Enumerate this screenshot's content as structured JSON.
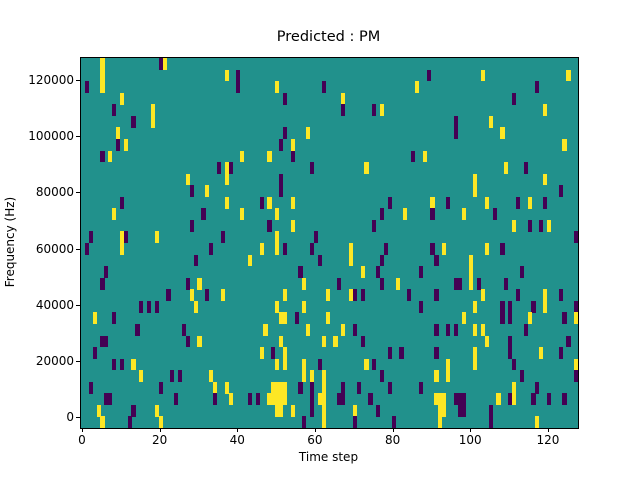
{
  "chart_data": {
    "type": "heatmap",
    "title": "Predicted : PM",
    "xlabel": "Time step",
    "ylabel": "Frequency (Hz)",
    "grid": {
      "cols": 128,
      "rows": 32
    },
    "x_ticks": [
      0,
      20,
      40,
      60,
      80,
      100,
      120
    ],
    "y_ticks": [
      0,
      20000,
      40000,
      60000,
      80000,
      100000,
      120000
    ],
    "x_range": [
      0,
      128
    ],
    "y_range": [
      0,
      128000
    ],
    "legend": "none",
    "colormap": {
      "background": "#21918c",
      "low": "#440154",
      "high": "#fde725"
    },
    "cells_format": "[col, row_from_top, color] with color y=high-yellow, p=low-purple; grid 128 cols x 32 rows",
    "cells": [
      [
        5,
        0,
        "y"
      ],
      [
        20,
        0,
        "p"
      ],
      [
        21,
        0,
        "y"
      ],
      [
        5,
        1,
        "y"
      ],
      [
        37,
        1,
        "y"
      ],
      [
        40,
        1,
        "p"
      ],
      [
        89,
        1,
        "p"
      ],
      [
        103,
        1,
        "y"
      ],
      [
        125,
        1,
        "y"
      ],
      [
        1,
        2,
        "p"
      ],
      [
        5,
        2,
        "y"
      ],
      [
        40,
        2,
        "p"
      ],
      [
        50,
        2,
        "y"
      ],
      [
        62,
        2,
        "p"
      ],
      [
        86,
        2,
        "y"
      ],
      [
        117,
        2,
        "p"
      ],
      [
        10,
        3,
        "y"
      ],
      [
        52,
        3,
        "p"
      ],
      [
        67,
        3,
        "y"
      ],
      [
        111,
        3,
        "p"
      ],
      [
        8,
        4,
        "p"
      ],
      [
        18,
        4,
        "y"
      ],
      [
        67,
        4,
        "p"
      ],
      [
        75,
        4,
        "p"
      ],
      [
        77,
        4,
        "y"
      ],
      [
        119,
        4,
        "y"
      ],
      [
        13,
        5,
        "p"
      ],
      [
        18,
        5,
        "y"
      ],
      [
        96,
        5,
        "p"
      ],
      [
        105,
        5,
        "y"
      ],
      [
        9,
        6,
        "y"
      ],
      [
        52,
        6,
        "p"
      ],
      [
        58,
        6,
        "y"
      ],
      [
        96,
        6,
        "p"
      ],
      [
        108,
        6,
        "y"
      ],
      [
        9,
        7,
        "p"
      ],
      [
        11,
        7,
        "y"
      ],
      [
        51,
        7,
        "p"
      ],
      [
        54,
        7,
        "y"
      ],
      [
        124,
        7,
        "y"
      ],
      [
        5,
        8,
        "p"
      ],
      [
        7,
        8,
        "y"
      ],
      [
        41,
        8,
        "y"
      ],
      [
        48,
        8,
        "y"
      ],
      [
        54,
        8,
        "p"
      ],
      [
        85,
        8,
        "p"
      ],
      [
        88,
        8,
        "y"
      ],
      [
        35,
        9,
        "p"
      ],
      [
        37,
        9,
        "y"
      ],
      [
        38,
        9,
        "p"
      ],
      [
        59,
        9,
        "p"
      ],
      [
        73,
        9,
        "y"
      ],
      [
        109,
        9,
        "y"
      ],
      [
        114,
        9,
        "p"
      ],
      [
        27,
        10,
        "y"
      ],
      [
        37,
        10,
        "y"
      ],
      [
        51,
        10,
        "p"
      ],
      [
        101,
        10,
        "y"
      ],
      [
        119,
        10,
        "y"
      ],
      [
        28,
        11,
        "p"
      ],
      [
        32,
        11,
        "y"
      ],
      [
        51,
        11,
        "p"
      ],
      [
        101,
        11,
        "y"
      ],
      [
        123,
        11,
        "p"
      ],
      [
        10,
        12,
        "p"
      ],
      [
        37,
        12,
        "y"
      ],
      [
        46,
        12,
        "p"
      ],
      [
        48,
        12,
        "y"
      ],
      [
        54,
        12,
        "y"
      ],
      [
        79,
        12,
        "p"
      ],
      [
        90,
        12,
        "y"
      ],
      [
        94,
        12,
        "p"
      ],
      [
        104,
        12,
        "y"
      ],
      [
        112,
        12,
        "p"
      ],
      [
        115,
        12,
        "y"
      ],
      [
        119,
        12,
        "p"
      ],
      [
        8,
        13,
        "y"
      ],
      [
        31,
        13,
        "p"
      ],
      [
        41,
        13,
        "y"
      ],
      [
        50,
        13,
        "y"
      ],
      [
        77,
        13,
        "p"
      ],
      [
        83,
        13,
        "y"
      ],
      [
        90,
        13,
        "p"
      ],
      [
        98,
        13,
        "y"
      ],
      [
        106,
        13,
        "p"
      ],
      [
        28,
        14,
        "p"
      ],
      [
        48,
        14,
        "p"
      ],
      [
        54,
        14,
        "y"
      ],
      [
        75,
        14,
        "p"
      ],
      [
        111,
        14,
        "y"
      ],
      [
        115,
        14,
        "p"
      ],
      [
        118,
        14,
        "p"
      ],
      [
        120,
        14,
        "y"
      ],
      [
        2,
        15,
        "p"
      ],
      [
        10,
        15,
        "y"
      ],
      [
        11,
        15,
        "p"
      ],
      [
        19,
        15,
        "y"
      ],
      [
        36,
        15,
        "p"
      ],
      [
        50,
        15,
        "y"
      ],
      [
        60,
        15,
        "p"
      ],
      [
        127,
        15,
        "p"
      ],
      [
        1,
        16,
        "p"
      ],
      [
        10,
        16,
        "y"
      ],
      [
        33,
        16,
        "p"
      ],
      [
        46,
        16,
        "y"
      ],
      [
        50,
        16,
        "y"
      ],
      [
        52,
        16,
        "p"
      ],
      [
        59,
        16,
        "p"
      ],
      [
        69,
        16,
        "y"
      ],
      [
        78,
        16,
        "p"
      ],
      [
        90,
        16,
        "p"
      ],
      [
        93,
        16,
        "y"
      ],
      [
        104,
        16,
        "y"
      ],
      [
        108,
        16,
        "p"
      ],
      [
        29,
        17,
        "p"
      ],
      [
        43,
        17,
        "y"
      ],
      [
        61,
        17,
        "p"
      ],
      [
        69,
        17,
        "y"
      ],
      [
        77,
        17,
        "p"
      ],
      [
        91,
        17,
        "p"
      ],
      [
        100,
        17,
        "y"
      ],
      [
        6,
        18,
        "p"
      ],
      [
        56,
        18,
        "p"
      ],
      [
        72,
        18,
        "y"
      ],
      [
        76,
        18,
        "p"
      ],
      [
        87,
        18,
        "p"
      ],
      [
        100,
        18,
        "y"
      ],
      [
        113,
        18,
        "p"
      ],
      [
        5,
        19,
        "p"
      ],
      [
        27,
        19,
        "p"
      ],
      [
        30,
        19,
        "y"
      ],
      [
        57,
        19,
        "y"
      ],
      [
        66,
        19,
        "p"
      ],
      [
        77,
        19,
        "p"
      ],
      [
        81,
        19,
        "y"
      ],
      [
        96,
        19,
        "p"
      ],
      [
        97,
        19,
        "p"
      ],
      [
        100,
        19,
        "y"
      ],
      [
        102,
        19,
        "p"
      ],
      [
        109,
        19,
        "p"
      ],
      [
        22,
        20,
        "p"
      ],
      [
        28,
        20,
        "y"
      ],
      [
        32,
        20,
        "p"
      ],
      [
        36,
        20,
        "y"
      ],
      [
        52,
        20,
        "y"
      ],
      [
        63,
        20,
        "y"
      ],
      [
        69,
        20,
        "y"
      ],
      [
        70,
        20,
        "p"
      ],
      [
        72,
        20,
        "p"
      ],
      [
        84,
        20,
        "p"
      ],
      [
        91,
        20,
        "p"
      ],
      [
        103,
        20,
        "y"
      ],
      [
        112,
        20,
        "p"
      ],
      [
        119,
        20,
        "y"
      ],
      [
        123,
        20,
        "p"
      ],
      [
        15,
        21,
        "p"
      ],
      [
        17,
        21,
        "p"
      ],
      [
        19,
        21,
        "p"
      ],
      [
        29,
        21,
        "y"
      ],
      [
        50,
        21,
        "y"
      ],
      [
        57,
        21,
        "y"
      ],
      [
        87,
        21,
        "p"
      ],
      [
        101,
        21,
        "y"
      ],
      [
        108,
        21,
        "p"
      ],
      [
        110,
        21,
        "p"
      ],
      [
        116,
        21,
        "p"
      ],
      [
        119,
        21,
        "y"
      ],
      [
        127,
        21,
        "p"
      ],
      [
        3,
        22,
        "y"
      ],
      [
        8,
        22,
        "p"
      ],
      [
        51,
        22,
        "y"
      ],
      [
        52,
        22,
        "y"
      ],
      [
        55,
        22,
        "p"
      ],
      [
        63,
        22,
        "y"
      ],
      [
        98,
        22,
        "y"
      ],
      [
        108,
        22,
        "p"
      ],
      [
        110,
        22,
        "p"
      ],
      [
        115,
        22,
        "y"
      ],
      [
        124,
        22,
        "p"
      ],
      [
        127,
        22,
        "y"
      ],
      [
        14,
        23,
        "p"
      ],
      [
        26,
        23,
        "p"
      ],
      [
        47,
        23,
        "y"
      ],
      [
        58,
        23,
        "y"
      ],
      [
        67,
        23,
        "y"
      ],
      [
        70,
        23,
        "p"
      ],
      [
        91,
        23,
        "p"
      ],
      [
        94,
        23,
        "p"
      ],
      [
        96,
        23,
        "p"
      ],
      [
        101,
        23,
        "y"
      ],
      [
        103,
        23,
        "y"
      ],
      [
        114,
        23,
        "p"
      ],
      [
        5,
        24,
        "p"
      ],
      [
        6,
        24,
        "p"
      ],
      [
        27,
        24,
        "p"
      ],
      [
        30,
        24,
        "y"
      ],
      [
        51,
        24,
        "y"
      ],
      [
        62,
        24,
        "y"
      ],
      [
        65,
        24,
        "y"
      ],
      [
        72,
        24,
        "p"
      ],
      [
        104,
        24,
        "y"
      ],
      [
        110,
        24,
        "p"
      ],
      [
        125,
        24,
        "p"
      ],
      [
        3,
        25,
        "p"
      ],
      [
        46,
        25,
        "y"
      ],
      [
        49,
        25,
        "p"
      ],
      [
        52,
        25,
        "y"
      ],
      [
        79,
        25,
        "p"
      ],
      [
        82,
        25,
        "p"
      ],
      [
        91,
        25,
        "p"
      ],
      [
        101,
        25,
        "y"
      ],
      [
        110,
        25,
        "p"
      ],
      [
        118,
        25,
        "y"
      ],
      [
        123,
        25,
        "p"
      ],
      [
        8,
        26,
        "p"
      ],
      [
        10,
        26,
        "p"
      ],
      [
        13,
        26,
        "y"
      ],
      [
        50,
        26,
        "y"
      ],
      [
        52,
        26,
        "y"
      ],
      [
        57,
        26,
        "y"
      ],
      [
        61,
        26,
        "p"
      ],
      [
        73,
        26,
        "y"
      ],
      [
        75,
        26,
        "p"
      ],
      [
        94,
        26,
        "y"
      ],
      [
        101,
        26,
        "y"
      ],
      [
        111,
        26,
        "p"
      ],
      [
        127,
        26,
        "y"
      ],
      [
        15,
        27,
        "y"
      ],
      [
        23,
        27,
        "p"
      ],
      [
        25,
        27,
        "p"
      ],
      [
        33,
        27,
        "y"
      ],
      [
        57,
        27,
        "y"
      ],
      [
        59,
        27,
        "y"
      ],
      [
        62,
        27,
        "y"
      ],
      [
        77,
        27,
        "p"
      ],
      [
        91,
        27,
        "y"
      ],
      [
        94,
        27,
        "y"
      ],
      [
        113,
        27,
        "p"
      ],
      [
        127,
        27,
        "p"
      ],
      [
        2,
        28,
        "p"
      ],
      [
        20,
        28,
        "p"
      ],
      [
        34,
        28,
        "y"
      ],
      [
        37,
        28,
        "y"
      ],
      [
        49,
        28,
        "y"
      ],
      [
        50,
        28,
        "y"
      ],
      [
        51,
        28,
        "y"
      ],
      [
        52,
        28,
        "y"
      ],
      [
        56,
        28,
        "p"
      ],
      [
        59,
        28,
        "p"
      ],
      [
        62,
        28,
        "y"
      ],
      [
        67,
        28,
        "p"
      ],
      [
        71,
        28,
        "p"
      ],
      [
        79,
        28,
        "p"
      ],
      [
        87,
        28,
        "p"
      ],
      [
        111,
        28,
        "y"
      ],
      [
        117,
        28,
        "p"
      ],
      [
        6,
        29,
        "p"
      ],
      [
        7,
        29,
        "p"
      ],
      [
        24,
        29,
        "p"
      ],
      [
        34,
        29,
        "p"
      ],
      [
        38,
        29,
        "y"
      ],
      [
        43,
        29,
        "p"
      ],
      [
        45,
        29,
        "p"
      ],
      [
        48,
        29,
        "y"
      ],
      [
        49,
        29,
        "y"
      ],
      [
        50,
        29,
        "y"
      ],
      [
        51,
        29,
        "y"
      ],
      [
        52,
        29,
        "y"
      ],
      [
        59,
        29,
        "p"
      ],
      [
        61,
        29,
        "y"
      ],
      [
        62,
        29,
        "y"
      ],
      [
        66,
        29,
        "p"
      ],
      [
        67,
        29,
        "p"
      ],
      [
        74,
        29,
        "p"
      ],
      [
        91,
        29,
        "y"
      ],
      [
        92,
        29,
        "y"
      ],
      [
        93,
        29,
        "y"
      ],
      [
        96,
        29,
        "p"
      ],
      [
        97,
        29,
        "p"
      ],
      [
        98,
        29,
        "p"
      ],
      [
        107,
        29,
        "y"
      ],
      [
        110,
        29,
        "p"
      ],
      [
        111,
        29,
        "y"
      ],
      [
        116,
        29,
        "p"
      ],
      [
        120,
        29,
        "p"
      ],
      [
        124,
        29,
        "p"
      ],
      [
        4,
        30,
        "y"
      ],
      [
        13,
        30,
        "p"
      ],
      [
        19,
        30,
        "y"
      ],
      [
        50,
        30,
        "y"
      ],
      [
        51,
        30,
        "y"
      ],
      [
        54,
        30,
        "y"
      ],
      [
        59,
        30,
        "p"
      ],
      [
        62,
        30,
        "y"
      ],
      [
        70,
        30,
        "y"
      ],
      [
        76,
        30,
        "p"
      ],
      [
        92,
        30,
        "y"
      ],
      [
        93,
        30,
        "y"
      ],
      [
        97,
        30,
        "p"
      ],
      [
        98,
        30,
        "p"
      ],
      [
        105,
        30,
        "p"
      ],
      [
        5,
        31,
        "y"
      ],
      [
        12,
        31,
        "p"
      ],
      [
        20,
        31,
        "y"
      ],
      [
        57,
        31,
        "p"
      ],
      [
        62,
        31,
        "y"
      ],
      [
        70,
        31,
        "p"
      ],
      [
        80,
        31,
        "p"
      ],
      [
        92,
        31,
        "y"
      ],
      [
        105,
        31,
        "p"
      ],
      [
        117,
        31,
        "y"
      ]
    ]
  }
}
